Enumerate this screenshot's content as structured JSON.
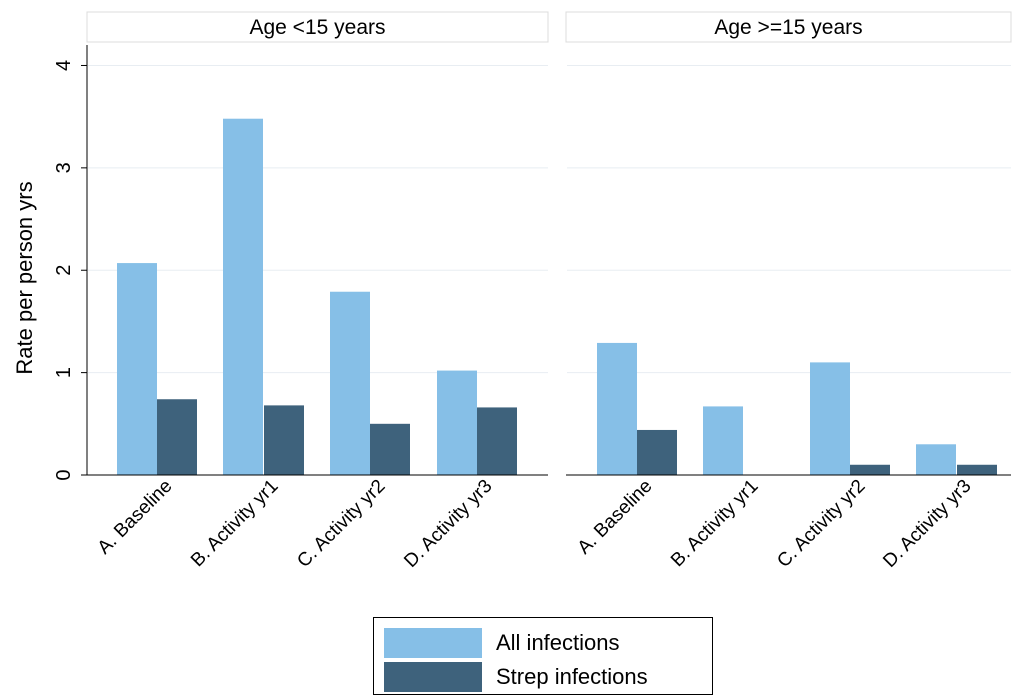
{
  "chart_data": {
    "type": "bar",
    "ylabel": "Rate per person yrs",
    "xlabel": "",
    "ylim": [
      0,
      4.2
    ],
    "yticks": [
      "0",
      "1",
      "2",
      "3",
      "4"
    ],
    "grid": true,
    "legend_placement": "bottom-center",
    "categories": [
      "A. Baseline",
      "B. Activity yr1",
      "C. Activity yr2",
      "D. Activity yr3"
    ],
    "panels": [
      {
        "title": "Age <15 years",
        "series": [
          {
            "name": "All infections",
            "values": [
              2.07,
              3.48,
              1.79,
              1.02
            ]
          },
          {
            "name": "Strep infections",
            "values": [
              0.74,
              0.68,
              0.5,
              0.66
            ]
          }
        ]
      },
      {
        "title": "Age >=15 years",
        "series": [
          {
            "name": "All infections",
            "values": [
              1.29,
              0.67,
              1.1,
              0.3
            ]
          },
          {
            "name": "Strep infections",
            "values": [
              0.44,
              0.0,
              0.1,
              0.1
            ]
          }
        ]
      }
    ],
    "colors": {
      "All infections": "#86bfe7",
      "Strep infections": "#3e627c"
    }
  },
  "legend": {
    "items": [
      {
        "label": "All infections",
        "color": "#86bfe7"
      },
      {
        "label": "Strep infections",
        "color": "#3e627c"
      }
    ]
  }
}
